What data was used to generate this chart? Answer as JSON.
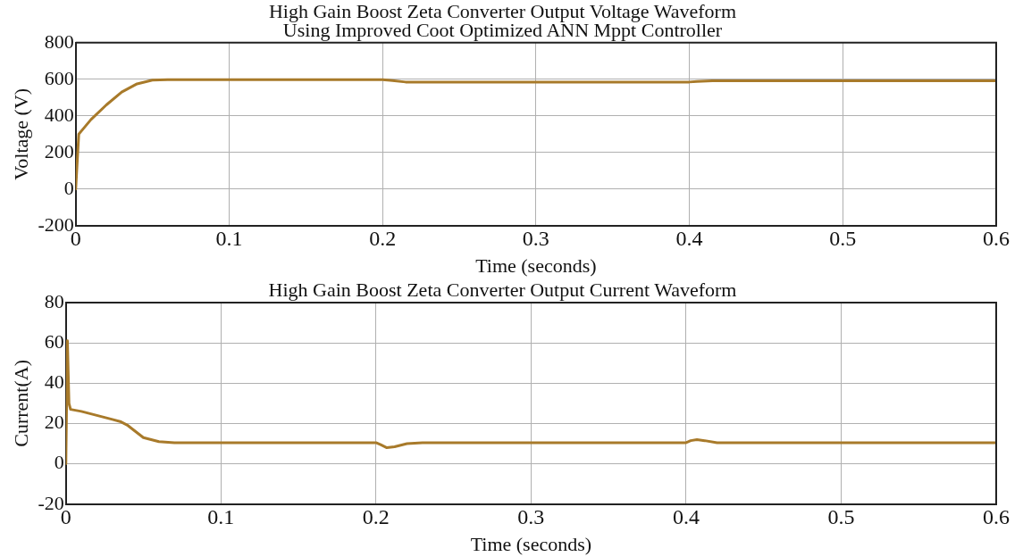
{
  "chart_data": [
    {
      "type": "line",
      "title": "High Gain Boost Zeta Converter Output Voltage Waveform",
      "subtitle": "Using Improved Coot Optimized ANN Mppt Controller",
      "xlabel": "Time (seconds)",
      "ylabel": "Voltage (V)",
      "xlim": [
        0,
        0.6
      ],
      "xticks": [
        0,
        0.1,
        0.2,
        0.3,
        0.4,
        0.5,
        0.6
      ],
      "ylim": [
        -200,
        800
      ],
      "yticks": [
        -200,
        0,
        200,
        400,
        600,
        800
      ],
      "grid": true,
      "legend": false,
      "marker": "none",
      "line_style": "solid",
      "series": [
        {
          "color": "#a87a2a",
          "x": [
            0,
            0.002,
            0.005,
            0.01,
            0.02,
            0.03,
            0.04,
            0.05,
            0.06,
            0.2,
            0.205,
            0.215,
            0.4,
            0.405,
            0.415,
            0.6
          ],
          "values": [
            0,
            300,
            330,
            380,
            460,
            530,
            575,
            595,
            598,
            598,
            594,
            585,
            585,
            588,
            592,
            592
          ]
        }
      ]
    },
    {
      "type": "line",
      "title": "High Gain Boost Zeta Converter Output Current Waveform",
      "xlabel": "Time (seconds)",
      "ylabel": "Current(A)",
      "xlim": [
        0,
        0.6
      ],
      "xticks": [
        0,
        0.1,
        0.2,
        0.3,
        0.4,
        0.5,
        0.6
      ],
      "ylim": [
        -20,
        80
      ],
      "yticks": [
        -20,
        0,
        20,
        40,
        60,
        80
      ],
      "grid": true,
      "legend": false,
      "marker": "none",
      "line_style": "solid",
      "series": [
        {
          "color": "#a87a2a",
          "x": [
            0,
            0.001,
            0.002,
            0.003,
            0.01,
            0.02,
            0.03,
            0.035,
            0.04,
            0.05,
            0.06,
            0.07,
            0.2,
            0.203,
            0.207,
            0.212,
            0.22,
            0.23,
            0.4,
            0.403,
            0.407,
            0.412,
            0.42,
            0.6
          ],
          "values": [
            0,
            61,
            30,
            27,
            26,
            24,
            22,
            21,
            19,
            13,
            11,
            10.5,
            10.5,
            9.5,
            8,
            8.5,
            10,
            10.5,
            10.5,
            11.5,
            12,
            11.5,
            10.5,
            10.5
          ]
        }
      ]
    }
  ]
}
